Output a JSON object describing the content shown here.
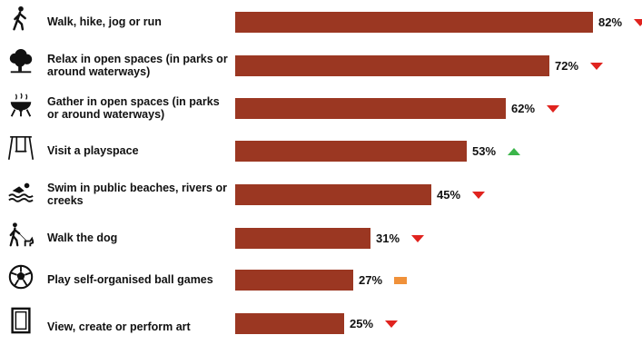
{
  "chart_data": {
    "type": "bar",
    "orientation": "horizontal",
    "value_suffix": "%",
    "bar_color": "#9b3722",
    "xlim": [
      0,
      100
    ],
    "trend_colors": {
      "down": "#e0231e",
      "up": "#3bb54a",
      "same": "#f0913a"
    },
    "categories": [
      "Walk, hike, jog or run",
      "Relax in open spaces (in parks or around waterways)",
      "Gather in open spaces (in parks or around waterways)",
      "Visit a playspace",
      "Swim in public beaches, rivers or creeks",
      "Walk the dog",
      "Play self-organised ball games",
      "View, create or perform art"
    ],
    "values": [
      82,
      72,
      62,
      53,
      45,
      31,
      27,
      25
    ],
    "trends": [
      "down",
      "down",
      "down",
      "up",
      "down",
      "down",
      "same",
      "down"
    ],
    "icons": [
      "walker-icon",
      "tree-icon",
      "bbq-icon",
      "swing-icon",
      "swimmer-icon",
      "dog-walker-icon",
      "soccer-ball-icon",
      "art-frame-icon"
    ]
  }
}
